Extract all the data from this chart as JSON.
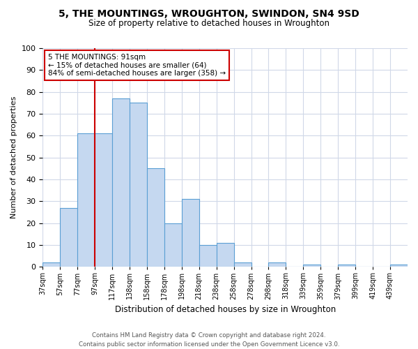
{
  "title": "5, THE MOUNTINGS, WROUGHTON, SWINDON, SN4 9SD",
  "subtitle": "Size of property relative to detached houses in Wroughton",
  "xlabel": "Distribution of detached houses by size in Wroughton",
  "ylabel": "Number of detached properties",
  "bar_labels": [
    "37sqm",
    "57sqm",
    "77sqm",
    "97sqm",
    "117sqm",
    "138sqm",
    "158sqm",
    "178sqm",
    "198sqm",
    "218sqm",
    "238sqm",
    "258sqm",
    "278sqm",
    "298sqm",
    "318sqm",
    "339sqm",
    "359sqm",
    "379sqm",
    "399sqm",
    "419sqm",
    "439sqm"
  ],
  "bar_values": [
    2,
    27,
    61,
    61,
    77,
    75,
    45,
    20,
    31,
    10,
    11,
    2,
    0,
    2,
    0,
    1,
    0,
    1,
    0,
    0,
    1
  ],
  "bar_color": "#c5d8f0",
  "bar_edge_color": "#5a9fd4",
  "vline_x": 3,
  "vline_color": "#cc0000",
  "annotation_text": "5 THE MOUNTINGS: 91sqm\n← 15% of detached houses are smaller (64)\n84% of semi-detached houses are larger (358) →",
  "annotation_box_color": "white",
  "annotation_box_edge_color": "#cc0000",
  "ylim": [
    0,
    100
  ],
  "yticks": [
    0,
    10,
    20,
    30,
    40,
    50,
    60,
    70,
    80,
    90,
    100
  ],
  "footer_line1": "Contains HM Land Registry data © Crown copyright and database right 2024.",
  "footer_line2": "Contains public sector information licensed under the Open Government Licence v3.0.",
  "bg_color": "#ffffff",
  "grid_color": "#d0d8e8"
}
